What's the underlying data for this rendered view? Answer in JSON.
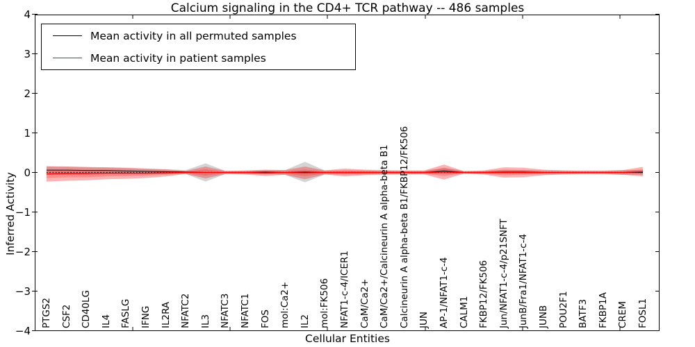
{
  "title": "Calcium signaling in the CD4+ TCR pathway -- 486 samples",
  "axes": {
    "xlabel": "Cellular Entities",
    "ylabel": "Inferred Activity"
  },
  "legend": {
    "items": [
      {
        "label": "Mean activity in all permuted samples",
        "color": "#000000"
      },
      {
        "label": "Mean activity in patient samples",
        "color": "#ff0000"
      }
    ],
    "position": "upper left"
  },
  "colors": {
    "permuted_band": "#b0b0b0",
    "patient_band": "#ff0000",
    "permuted_mean_line": "#000000",
    "patient_mean_line": "#ff0000",
    "zero_line": "#000000"
  },
  "chart_data": {
    "type": "area",
    "title": "Calcium signaling in the CD4+ TCR pathway -- 486 samples",
    "xlabel": "Cellular Entities",
    "ylabel": "Inferred Activity",
    "ylim": [
      -4,
      4
    ],
    "yticks": [
      4,
      3,
      2,
      1,
      0,
      -1,
      -2,
      -3,
      -4
    ],
    "grid": false,
    "legend_position": "upper left",
    "categories": [
      "PTGS2",
      "CSF2",
      "CD40LG",
      "IL4",
      "FASLG",
      "IFNG",
      "IL2RA",
      "NFATC2",
      "IL3",
      "NFATC3",
      "NFATC1",
      "FOS",
      "mol:Ca2+",
      "IL2",
      "mol:FK506",
      "NFAT1-c-4/ICER1",
      "CaM/Ca2+",
      "CaM/Ca2+/Calcineurin A alpha-beta B1",
      "Calcineurin A alpha-beta B1/FKBP12/FK506",
      "JUN",
      "AP-1/NFAT1-c-4",
      "CALM1",
      "FKBP12/FK506",
      "Jun/NFAT1-c-4/p21SNFT",
      "JunB/Fra1/NFAT1-c-4",
      "JUNB",
      "POU2F1",
      "BATF3",
      "FKBP1A",
      "CREM",
      "FOSL1"
    ],
    "series": [
      {
        "name": "permuted_mean",
        "values": [
          0.06,
          0.06,
          0.05,
          0.05,
          0.04,
          0.03,
          0.02,
          0.01,
          0.0,
          0.0,
          0.0,
          0.01,
          0.0,
          0.01,
          0.0,
          0.0,
          0.0,
          0.0,
          0.0,
          0.0,
          0.04,
          0.0,
          0.0,
          0.01,
          0.01,
          0.0,
          0.0,
          0.0,
          0.0,
          0.0,
          0.0
        ]
      },
      {
        "name": "patient_mean",
        "values": [
          -0.04,
          -0.03,
          -0.03,
          -0.02,
          -0.02,
          -0.02,
          -0.01,
          0.0,
          0.0,
          0.0,
          0.0,
          -0.01,
          0.0,
          -0.01,
          0.0,
          0.0,
          0.0,
          0.0,
          0.0,
          0.0,
          0.01,
          0.0,
          0.0,
          0.0,
          0.0,
          0.0,
          0.0,
          0.0,
          0.0,
          0.0,
          0.02
        ]
      },
      {
        "name": "permuted_band_halfwidth",
        "values": [
          0.1,
          0.09,
          0.08,
          0.08,
          0.07,
          0.06,
          0.06,
          0.05,
          0.23,
          0.04,
          0.04,
          0.05,
          0.06,
          0.26,
          0.05,
          0.05,
          0.05,
          0.04,
          0.04,
          0.04,
          0.08,
          0.04,
          0.04,
          0.05,
          0.05,
          0.05,
          0.05,
          0.05,
          0.05,
          0.06,
          0.06
        ]
      },
      {
        "name": "patient_band_halfwidth",
        "values": [
          0.19,
          0.18,
          0.17,
          0.15,
          0.14,
          0.12,
          0.09,
          0.04,
          0.15,
          0.04,
          0.05,
          0.08,
          0.06,
          0.16,
          0.05,
          0.1,
          0.07,
          0.06,
          0.05,
          0.05,
          0.19,
          0.03,
          0.05,
          0.13,
          0.12,
          0.07,
          0.05,
          0.04,
          0.04,
          0.06,
          0.12
        ]
      },
      {
        "name": "patient_inner_band_halfwidth",
        "values": [
          0.1,
          0.09,
          0.09,
          0.08,
          0.07,
          0.06,
          0.05,
          0.02,
          0.08,
          0.02,
          0.03,
          0.04,
          0.03,
          0.08,
          0.03,
          0.05,
          0.04,
          0.03,
          0.03,
          0.03,
          0.1,
          0.02,
          0.03,
          0.07,
          0.06,
          0.03,
          0.02,
          0.02,
          0.02,
          0.03,
          0.06
        ]
      }
    ]
  }
}
